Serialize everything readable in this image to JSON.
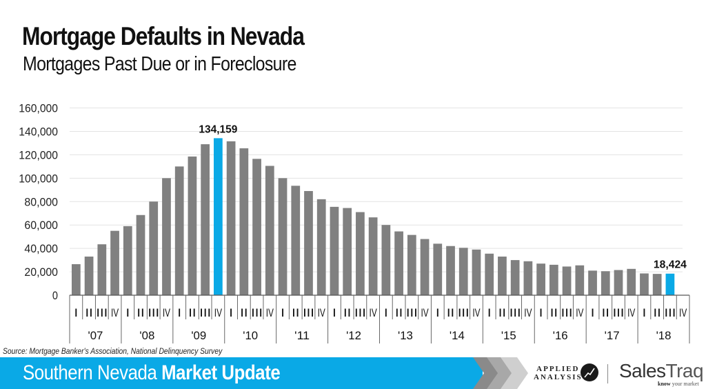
{
  "header": {
    "title": "Mortgage Defaults in Nevada",
    "subtitle": "Mortgages Past Due or in Foreclosure"
  },
  "source": "Source: Mortgage Banker's Association, National Delinquency Survey",
  "footer": {
    "banner_light": "Southern Nevada ",
    "banner_bold": "Market Update",
    "logo_applied_line1": "APPLIED",
    "logo_applied_line2": "ANALYSIS",
    "logo_sales": "Sales",
    "logo_traq": "Traq",
    "logo_tagline_bold": "know",
    "logo_tagline": " your market"
  },
  "colors": {
    "bar": "#808080",
    "highlight": "#0aa9e6",
    "grid": "#e3e3e3",
    "axis": "#555555",
    "banner": "#0aa9e6"
  },
  "chart_data": {
    "type": "bar",
    "title": "Mortgage Defaults in Nevada",
    "subtitle": "Mortgages Past Due or in Foreclosure",
    "xlabel": "",
    "ylabel": "",
    "ylim": [
      0,
      160000
    ],
    "yticks": [
      0,
      20000,
      40000,
      60000,
      80000,
      100000,
      120000,
      140000,
      160000
    ],
    "ytick_labels": [
      "0",
      "20,000",
      "40,000",
      "60,000",
      "80,000",
      "100,000",
      "120,000",
      "140,000",
      "160,000"
    ],
    "grid": true,
    "legend": null,
    "quarters": [
      "I",
      "II",
      "III",
      "IV"
    ],
    "years": [
      "'07",
      "'08",
      "'09",
      "'10",
      "'11",
      "'12",
      "'13",
      "'14",
      "'15",
      "'16",
      "'17",
      "'18"
    ],
    "categories": [
      "2007 Q1",
      "2007 Q2",
      "2007 Q3",
      "2007 Q4",
      "2008 Q1",
      "2008 Q2",
      "2008 Q3",
      "2008 Q4",
      "2009 Q1",
      "2009 Q2",
      "2009 Q3",
      "2009 Q4",
      "2010 Q1",
      "2010 Q2",
      "2010 Q3",
      "2010 Q4",
      "2011 Q1",
      "2011 Q2",
      "2011 Q3",
      "2011 Q4",
      "2012 Q1",
      "2012 Q2",
      "2012 Q3",
      "2012 Q4",
      "2013 Q1",
      "2013 Q2",
      "2013 Q3",
      "2013 Q4",
      "2014 Q1",
      "2014 Q2",
      "2014 Q3",
      "2014 Q4",
      "2015 Q1",
      "2015 Q2",
      "2015 Q3",
      "2015 Q4",
      "2016 Q1",
      "2016 Q2",
      "2016 Q3",
      "2016 Q4",
      "2017 Q1",
      "2017 Q2",
      "2017 Q3",
      "2017 Q4",
      "2018 Q1",
      "2018 Q2",
      "2018 Q3",
      "2018 Q4"
    ],
    "values": [
      26500,
      33000,
      43500,
      55000,
      59000,
      68500,
      80000,
      100000,
      110000,
      118500,
      129000,
      134159,
      131500,
      125500,
      116500,
      110500,
      100000,
      93500,
      89000,
      82000,
      75500,
      74500,
      71000,
      66500,
      60000,
      54500,
      51500,
      48000,
      44000,
      42000,
      40500,
      39000,
      35500,
      33000,
      30000,
      29000,
      27000,
      26000,
      24500,
      25500,
      21000,
      20500,
      21500,
      22500,
      18600,
      18200,
      18424,
      null
    ],
    "highlighted": [
      {
        "index": 11,
        "label": "134,159"
      },
      {
        "index": 46,
        "label": "18,424"
      }
    ]
  }
}
